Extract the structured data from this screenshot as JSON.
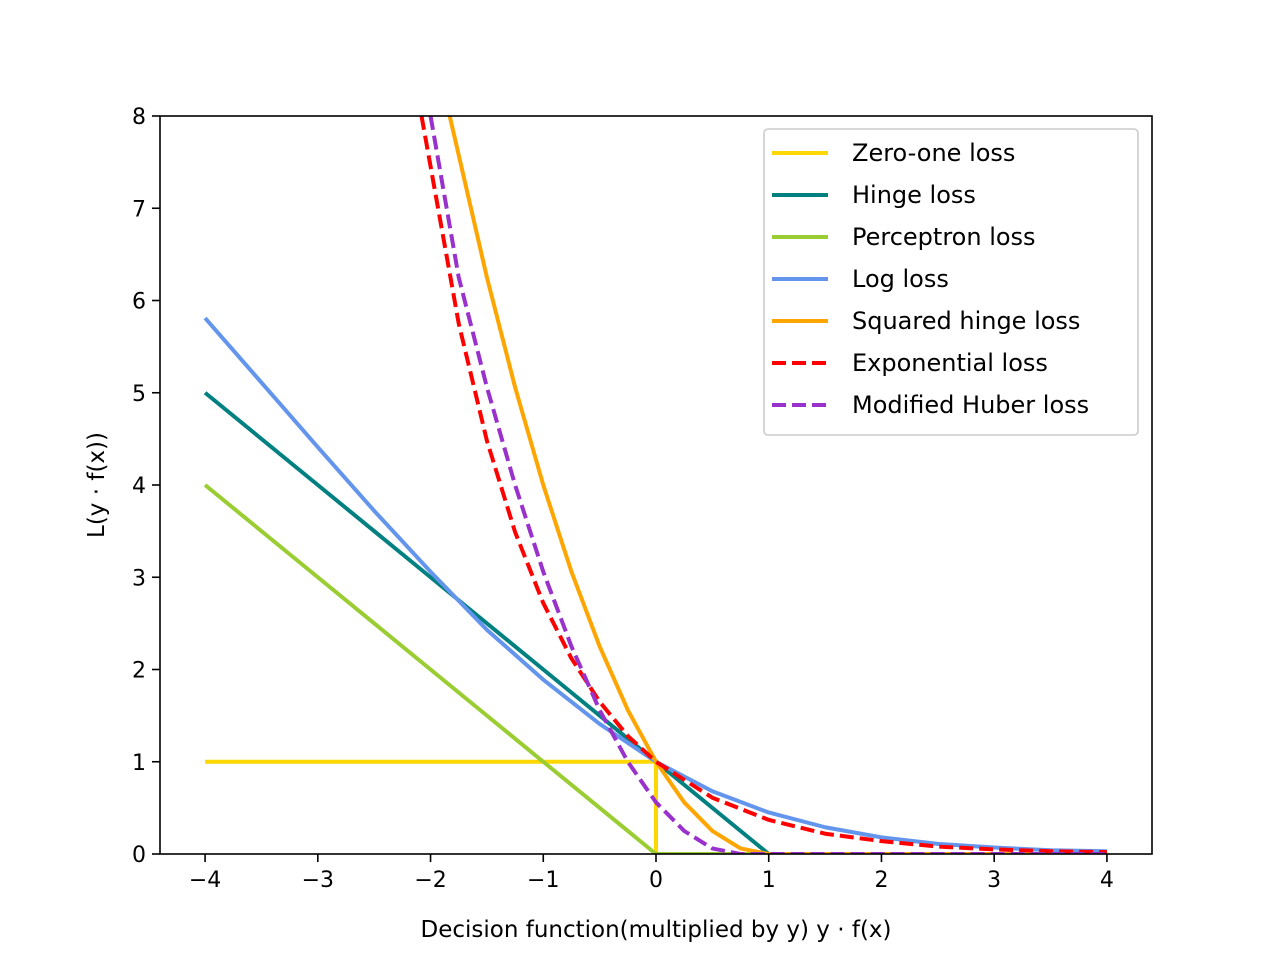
{
  "chart_data": {
    "type": "line",
    "title": "",
    "xlabel": "Decision function(multiplied by y) y · f(x)",
    "ylabel": "L(y · f(x))",
    "xlim": [
      -4.4,
      4.4
    ],
    "ylim": [
      0,
      8
    ],
    "x_ticks": [
      -4,
      -3,
      -2,
      -1,
      0,
      1,
      2,
      3,
      4
    ],
    "y_ticks": [
      0,
      1,
      2,
      3,
      4,
      5,
      6,
      7,
      8
    ],
    "x_tick_labels": [
      "−4",
      "−3",
      "−2",
      "−1",
      "0",
      "1",
      "2",
      "3",
      "4"
    ],
    "y_tick_labels": [
      "0",
      "1",
      "2",
      "3",
      "4",
      "5",
      "6",
      "7",
      "8"
    ],
    "grid": false,
    "legend_position": "top-right",
    "series": [
      {
        "name": "Zero-one loss",
        "color": "#FFD700",
        "dash": "solid",
        "x": [
          -4,
          0,
          0,
          4
        ],
        "y": [
          1,
          1,
          0,
          0
        ]
      },
      {
        "name": "Hinge loss",
        "color": "#008080",
        "dash": "solid",
        "x": [
          -4,
          -3,
          -2,
          -1,
          0,
          1,
          2,
          3,
          4
        ],
        "y": [
          5,
          4,
          3,
          2,
          1,
          0,
          0,
          0,
          0
        ]
      },
      {
        "name": "Perceptron loss",
        "color": "#9ACD32",
        "dash": "solid",
        "x": [
          -4,
          -3,
          -2,
          -1,
          0,
          1,
          2,
          3,
          4
        ],
        "y": [
          4,
          3,
          2,
          1,
          0,
          0,
          0,
          0,
          0
        ]
      },
      {
        "name": "Log loss",
        "color": "#6495ED",
        "dash": "solid",
        "x": [
          -4,
          -3.5,
          -3,
          -2.5,
          -2,
          -1.5,
          -1,
          -0.5,
          0,
          0.5,
          1,
          1.5,
          2,
          2.5,
          3,
          3.5,
          4
        ],
        "y": [
          5.81,
          5.11,
          4.41,
          3.72,
          3.06,
          2.43,
          1.89,
          1.41,
          1.0,
          0.68,
          0.45,
          0.29,
          0.18,
          0.11,
          0.07,
          0.04,
          0.03
        ]
      },
      {
        "name": "Squared hinge loss",
        "color": "#FFA500",
        "dash": "solid",
        "x": [
          -1.83,
          -1.5,
          -1.25,
          -1,
          -0.75,
          -0.5,
          -0.25,
          0,
          0.25,
          0.5,
          0.75,
          1,
          2,
          3,
          4
        ],
        "y": [
          8.0,
          6.25,
          5.06,
          4.0,
          3.06,
          2.25,
          1.56,
          1.0,
          0.56,
          0.25,
          0.06,
          0,
          0,
          0,
          0
        ]
      },
      {
        "name": "Exponential loss",
        "color": "#FF0000",
        "dash": "dashed",
        "x": [
          -2.08,
          -1.75,
          -1.5,
          -1.25,
          -1,
          -0.75,
          -0.5,
          -0.25,
          0,
          0.5,
          1,
          1.5,
          2,
          2.5,
          3,
          3.5,
          4
        ],
        "y": [
          8.0,
          5.75,
          4.48,
          3.49,
          2.72,
          2.12,
          1.65,
          1.28,
          1.0,
          0.61,
          0.37,
          0.22,
          0.14,
          0.08,
          0.05,
          0.03,
          0.02
        ]
      },
      {
        "name": "Modified Huber loss",
        "color": "#9932CC",
        "dash": "dashed",
        "x": [
          -2.0,
          -1.75,
          -1.5,
          -1.25,
          -1,
          -0.75,
          -0.5,
          -0.25,
          0,
          0.25,
          0.5,
          0.75,
          1,
          2,
          3,
          4
        ],
        "y": [
          8.0,
          6.25,
          5.06,
          4.0,
          3.06,
          2.25,
          1.56,
          1.0,
          0.56,
          0.25,
          0.06,
          0,
          0,
          0,
          0,
          0
        ]
      }
    ]
  }
}
